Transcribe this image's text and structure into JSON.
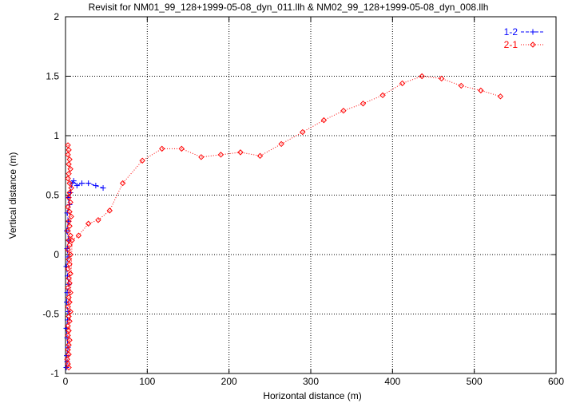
{
  "chart_data": {
    "type": "scatter",
    "title": "Revisit for NM01_99_128+1999-05-08_dyn_011.llh & NM02_99_128+1999-05-08_dyn_008.llh",
    "xlabel": "Horizontal distance (m)",
    "ylabel": "Vertical distance (m)",
    "xlim": [
      0,
      600
    ],
    "ylim": [
      -1,
      2
    ],
    "x_ticks": [
      0,
      100,
      200,
      300,
      400,
      500,
      600
    ],
    "y_ticks": [
      -1,
      -0.5,
      0,
      0.5,
      1,
      1.5,
      2
    ],
    "x_tick_labels": [
      "0",
      "100",
      "200",
      "300",
      "400",
      "500",
      "600"
    ],
    "y_tick_labels": [
      "-1",
      "-0.5",
      "0",
      "0.5",
      "1",
      "1.5",
      "2"
    ],
    "grid": true,
    "grid_style": "dotted",
    "legend_position": "top-right",
    "series": [
      {
        "name": "1-2",
        "color": "#0000ff",
        "marker": "plus",
        "line_style": "dashed",
        "points": [
          [
            1,
            -0.95
          ],
          [
            2,
            -0.9
          ],
          [
            1.5,
            -0.85
          ],
          [
            3,
            -0.78
          ],
          [
            2,
            -0.7
          ],
          [
            1,
            -0.62
          ],
          [
            2.5,
            -0.55
          ],
          [
            3,
            -0.48
          ],
          [
            1.5,
            -0.4
          ],
          [
            2,
            -0.32
          ],
          [
            4,
            -0.25
          ],
          [
            2.5,
            -0.18
          ],
          [
            1,
            -0.1
          ],
          [
            3,
            -0.02
          ],
          [
            2,
            0.05
          ],
          [
            4,
            0.12
          ],
          [
            1.5,
            0.2
          ],
          [
            3.5,
            0.28
          ],
          [
            2,
            0.35
          ],
          [
            5,
            0.42
          ],
          [
            3,
            0.48
          ],
          [
            6,
            0.52
          ],
          [
            8,
            0.6
          ],
          [
            10,
            0.62
          ],
          [
            14,
            0.58
          ],
          [
            20,
            0.6
          ],
          [
            28,
            0.6
          ],
          [
            37,
            0.58
          ],
          [
            46,
            0.56
          ]
        ]
      },
      {
        "name": "2-1",
        "color": "#ff0000",
        "marker": "diamond",
        "line_style": "dotted",
        "points": [
          [
            3,
            0.92
          ],
          [
            4,
            0.88
          ],
          [
            3,
            0.84
          ],
          [
            5,
            0.8
          ],
          [
            4,
            0.76
          ],
          [
            6,
            0.72
          ],
          [
            4,
            0.68
          ],
          [
            3,
            0.64
          ],
          [
            5,
            0.6
          ],
          [
            7,
            0.56
          ],
          [
            5,
            0.52
          ],
          [
            4,
            0.48
          ],
          [
            6,
            0.44
          ],
          [
            3,
            0.4
          ],
          [
            5,
            0.36
          ],
          [
            7,
            0.32
          ],
          [
            4,
            0.28
          ],
          [
            5,
            0.24
          ],
          [
            3,
            0.2
          ],
          [
            6,
            0.16
          ],
          [
            4,
            0.12
          ],
          [
            5,
            0.08
          ],
          [
            3,
            0.04
          ],
          [
            6,
            0.0
          ],
          [
            4,
            -0.04
          ],
          [
            5,
            -0.08
          ],
          [
            3,
            -0.12
          ],
          [
            6,
            -0.16
          ],
          [
            4,
            -0.2
          ],
          [
            5,
            -0.24
          ],
          [
            3,
            -0.28
          ],
          [
            6,
            -0.32
          ],
          [
            4,
            -0.36
          ],
          [
            5,
            -0.4
          ],
          [
            3,
            -0.44
          ],
          [
            6,
            -0.48
          ],
          [
            4,
            -0.52
          ],
          [
            5,
            -0.56
          ],
          [
            3,
            -0.6
          ],
          [
            4,
            -0.64
          ],
          [
            3,
            -0.68
          ],
          [
            5,
            -0.72
          ],
          [
            4,
            -0.76
          ],
          [
            3,
            -0.8
          ],
          [
            4,
            -0.84
          ],
          [
            2,
            -0.88
          ],
          [
            3,
            -0.92
          ],
          [
            4,
            -0.95
          ],
          [
            8,
            0.12
          ],
          [
            16,
            0.16
          ],
          [
            28,
            0.26
          ],
          [
            40,
            0.29
          ],
          [
            54,
            0.37
          ],
          [
            70,
            0.6
          ],
          [
            94,
            0.79
          ],
          [
            118,
            0.89
          ],
          [
            142,
            0.89
          ],
          [
            166,
            0.82
          ],
          [
            190,
            0.84
          ],
          [
            214,
            0.86
          ],
          [
            238,
            0.83
          ],
          [
            264,
            0.93
          ],
          [
            290,
            1.03
          ],
          [
            316,
            1.13
          ],
          [
            340,
            1.21
          ],
          [
            364,
            1.27
          ],
          [
            388,
            1.34
          ],
          [
            412,
            1.44
          ],
          [
            436,
            1.5
          ],
          [
            460,
            1.48
          ],
          [
            484,
            1.42
          ],
          [
            508,
            1.38
          ],
          [
            532,
            1.33
          ]
        ]
      }
    ]
  }
}
